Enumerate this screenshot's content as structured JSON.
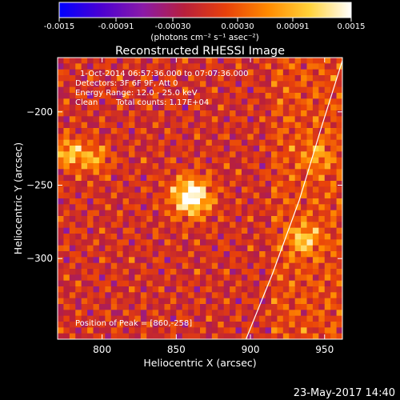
{
  "colorbar": {
    "ticks": [
      "-0.0015",
      "-0.00091",
      "-0.00030",
      "0.00030",
      "0.00091",
      "0.0015"
    ],
    "unit_label": "(photons cm⁻² s⁻¹ asec⁻²)",
    "colormap": [
      "#0000ff",
      "#4b00d2",
      "#8a1aa8",
      "#b81f3c",
      "#e8410a",
      "#ff8a00",
      "#ffd23a",
      "#ffffff"
    ]
  },
  "info": {
    "time_range": "1-Oct-2014 06:57:36.000 to 07:07:36.000",
    "detectors": "Detectors: 3F 6F 9F, Att 0",
    "energy": "Energy Range: 12.0 - 25.0 keV",
    "algorithm": "Clean",
    "counts": "Total counts: 1.17E+04",
    "peak": "Position of Peak = [860,-258]"
  },
  "footer": {
    "date": "23-May-2017 14:40"
  },
  "chart_data": {
    "type": "heatmap",
    "title": "Reconstructed RHESSI Image",
    "xlabel": "Heliocentric X (arcsec)",
    "ylabel": "Heliocentric Y (arcsec)",
    "xlim": [
      770,
      962
    ],
    "ylim": [
      -355,
      -163
    ],
    "xticks": [
      800,
      850,
      900,
      950
    ],
    "yticks": [
      -200,
      -250,
      -300
    ],
    "colorbar_range": [
      -0.0015,
      0.0015
    ],
    "peak": {
      "x": 860,
      "y": -258
    },
    "secondary_sources": [
      {
        "x": 778,
        "y": -228,
        "intensity": 0.6
      },
      {
        "x": 795,
        "y": -232,
        "intensity": 0.45
      },
      {
        "x": 936,
        "y": -287,
        "intensity": 0.55
      },
      {
        "x": 945,
        "y": -230,
        "intensity": 0.35
      }
    ],
    "limb_arc": [
      {
        "x": 897,
        "y": -355
      },
      {
        "x": 915,
        "y": -310
      },
      {
        "x": 933,
        "y": -260
      },
      {
        "x": 948,
        "y": -210
      },
      {
        "x": 962,
        "y": -165
      }
    ]
  }
}
